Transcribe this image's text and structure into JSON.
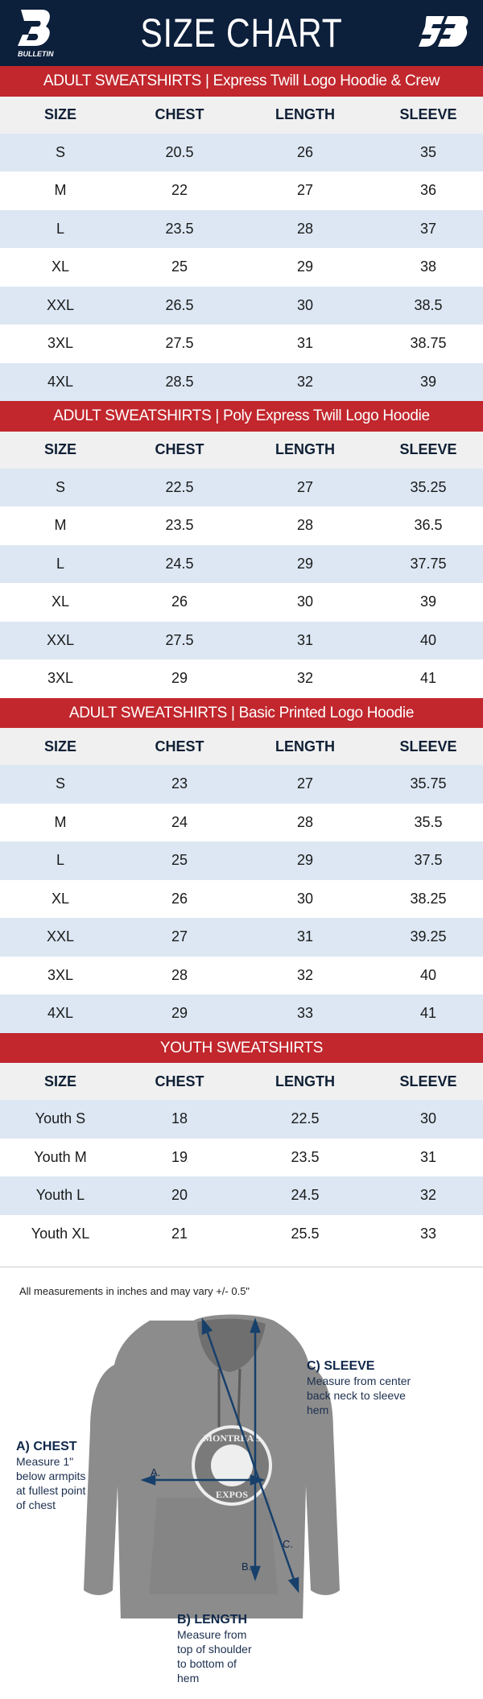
{
  "header": {
    "title": "SIZE CHART",
    "brand_left": "BULLETIN",
    "brand_right": "SB"
  },
  "colors": {
    "navy": "#0c1f3b",
    "red": "#c1272d",
    "row_alt": "#dce7f3",
    "header_row": "#f0f0f0"
  },
  "columns": [
    "SIZE",
    "CHEST",
    "LENGTH",
    "SLEEVE"
  ],
  "sections": [
    {
      "title": "ADULT SWEATSHIRTS | Express Twill Logo Hoodie & Crew",
      "rows": [
        [
          "S",
          "20.5",
          "26",
          "35"
        ],
        [
          "M",
          "22",
          "27",
          "36"
        ],
        [
          "L",
          "23.5",
          "28",
          "37"
        ],
        [
          "XL",
          "25",
          "29",
          "38"
        ],
        [
          "XXL",
          "26.5",
          "30",
          "38.5"
        ],
        [
          "3XL",
          "27.5",
          "31",
          "38.75"
        ],
        [
          "4XL",
          "28.5",
          "32",
          "39"
        ]
      ]
    },
    {
      "title": "ADULT SWEATSHIRTS | Poly Express Twill Logo Hoodie",
      "rows": [
        [
          "S",
          "22.5",
          "27",
          "35.25"
        ],
        [
          "M",
          "23.5",
          "28",
          "36.5"
        ],
        [
          "L",
          "24.5",
          "29",
          "37.75"
        ],
        [
          "XL",
          "26",
          "30",
          "39"
        ],
        [
          "XXL",
          "27.5",
          "31",
          "40"
        ],
        [
          "3XL",
          "29",
          "32",
          "41"
        ]
      ]
    },
    {
      "title": "ADULT SWEATSHIRTS | Basic Printed Logo Hoodie",
      "rows": [
        [
          "S",
          "23",
          "27",
          "35.75"
        ],
        [
          "M",
          "24",
          "28",
          "35.5"
        ],
        [
          "L",
          "25",
          "29",
          "37.5"
        ],
        [
          "XL",
          "26",
          "30",
          "38.25"
        ],
        [
          "XXL",
          "27",
          "31",
          "39.25"
        ],
        [
          "3XL",
          "28",
          "32",
          "40"
        ],
        [
          "4XL",
          "29",
          "33",
          "41"
        ]
      ]
    },
    {
      "title": "YOUTH SWEATSHIRTS",
      "rows": [
        [
          "Youth S",
          "18",
          "22.5",
          "30"
        ],
        [
          "Youth M",
          "19",
          "23.5",
          "31"
        ],
        [
          "Youth L",
          "20",
          "24.5",
          "32"
        ],
        [
          "Youth XL",
          "21",
          "25.5",
          "33"
        ]
      ]
    }
  ],
  "note": "All measurements in inches and may vary +/- 0.5\"",
  "diagram": {
    "markers": {
      "a": "A.",
      "b": "B.",
      "c": "C."
    },
    "chest": {
      "title": "A) CHEST",
      "desc": "Measure 1\" below armpits at fullest point of chest"
    },
    "length": {
      "title": "B) LENGTH",
      "desc": "Measure from top of shoulder to bottom of hem"
    },
    "sleeve": {
      "title": "C) SLEEVE",
      "desc": "Measure from center back neck to sleeve hem"
    },
    "print": {
      "top": "MONTREAL",
      "bottom": "EXPOS"
    }
  }
}
